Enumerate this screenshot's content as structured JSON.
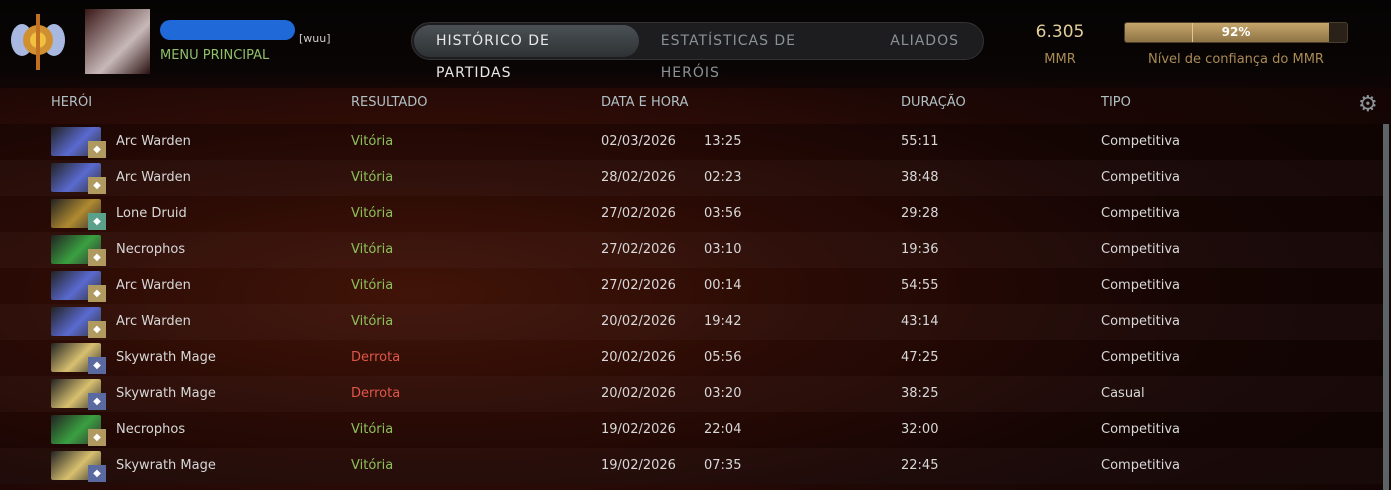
{
  "header": {
    "guild_tag": "[wuu]",
    "status": "MENU PRINCIPAL",
    "tabs": [
      {
        "label": "HISTÓRICO DE PARTIDAS",
        "active": true
      },
      {
        "label": "ESTATÍSTICAS DE HERÓIS",
        "active": false
      },
      {
        "label": "ALIADOS",
        "active": false
      }
    ],
    "mmr_value": "6.305",
    "mmr_label": "MMR",
    "confidence_percent": 92,
    "confidence_text": "92%",
    "confidence_label": "Nível de confiança do MMR"
  },
  "table": {
    "columns": [
      "HERÓI",
      "RESULTADO",
      "DATA E HORA",
      "DURAÇÃO",
      "TIPO"
    ],
    "rows": [
      {
        "hero": "Arc Warden",
        "result": "Vitória",
        "date": "02/03/2026",
        "time": "13:25",
        "duration": "55:11",
        "type": "Competitiva"
      },
      {
        "hero": "Arc Warden",
        "result": "Vitória",
        "date": "28/02/2026",
        "time": "02:23",
        "duration": "38:48",
        "type": "Competitiva"
      },
      {
        "hero": "Lone Druid",
        "result": "Vitória",
        "date": "27/02/2026",
        "time": "03:56",
        "duration": "29:28",
        "type": "Competitiva"
      },
      {
        "hero": "Necrophos",
        "result": "Vitória",
        "date": "27/02/2026",
        "time": "03:10",
        "duration": "19:36",
        "type": "Competitiva"
      },
      {
        "hero": "Arc Warden",
        "result": "Vitória",
        "date": "27/02/2026",
        "time": "00:14",
        "duration": "54:55",
        "type": "Competitiva"
      },
      {
        "hero": "Arc Warden",
        "result": "Vitória",
        "date": "20/02/2026",
        "time": "19:42",
        "duration": "43:14",
        "type": "Competitiva"
      },
      {
        "hero": "Skywrath Mage",
        "result": "Derrota",
        "date": "20/02/2026",
        "time": "05:56",
        "duration": "47:25",
        "type": "Competitiva"
      },
      {
        "hero": "Skywrath Mage",
        "result": "Derrota",
        "date": "20/02/2026",
        "time": "03:20",
        "duration": "38:25",
        "type": "Casual"
      },
      {
        "hero": "Necrophos",
        "result": "Vitória",
        "date": "19/02/2026",
        "time": "22:04",
        "duration": "32:00",
        "type": "Competitiva"
      },
      {
        "hero": "Skywrath Mage",
        "result": "Vitória",
        "date": "19/02/2026",
        "time": "07:35",
        "duration": "22:45",
        "type": "Competitiva"
      }
    ]
  },
  "colors": {
    "win": "#8cc05a",
    "loss": "#e0564a",
    "hero_arc": "#5a6ad0",
    "hero_lone": "#b08a30",
    "hero_necro": "#3aa040",
    "hero_sky": "#d8c070"
  }
}
